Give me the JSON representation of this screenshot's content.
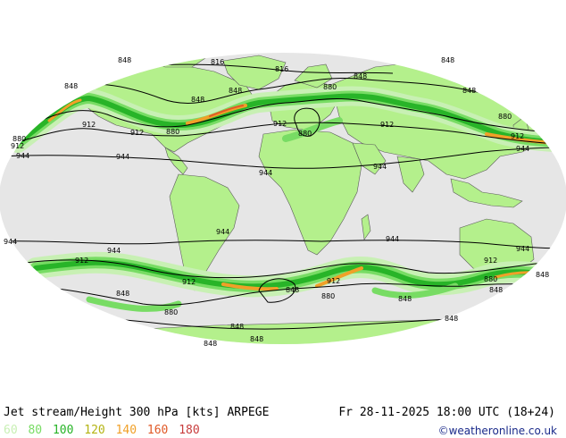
{
  "map": {
    "contour_labels": [
      {
        "text": "848",
        "id": "848-nw"
      },
      {
        "text": "816",
        "id": "816-arctic-a"
      },
      {
        "text": "816",
        "id": "816-arctic-b"
      },
      {
        "text": "848",
        "id": "848-ne"
      },
      {
        "text": "848",
        "id": "848-alaska"
      },
      {
        "text": "848",
        "id": "848-nam"
      },
      {
        "text": "848",
        "id": "848-atl"
      },
      {
        "text": "848",
        "id": "848-eur"
      },
      {
        "text": "848",
        "id": "848-asia"
      },
      {
        "text": "880",
        "id": "880-eur"
      },
      {
        "text": "880",
        "id": "880-med"
      },
      {
        "text": "880",
        "id": "880-nam"
      },
      {
        "text": "880",
        "id": "880-pac-w"
      },
      {
        "text": "880",
        "id": "880-pac-e"
      },
      {
        "text": "912",
        "id": "912-pac"
      },
      {
        "text": "912",
        "id": "912-nam"
      },
      {
        "text": "912",
        "id": "912-atl"
      },
      {
        "text": "912",
        "id": "912-asia"
      },
      {
        "text": "912",
        "id": "912-east"
      },
      {
        "text": "912",
        "id": "912-w"
      },
      {
        "text": "944",
        "id": "944-w"
      },
      {
        "text": "944",
        "id": "944-pac"
      },
      {
        "text": "944",
        "id": "944-afr"
      },
      {
        "text": "944",
        "id": "944-ind"
      },
      {
        "text": "944",
        "id": "944-e"
      },
      {
        "text": "944",
        "id": "944-sw"
      },
      {
        "text": "944",
        "id": "944-spac"
      },
      {
        "text": "944",
        "id": "944-sam"
      },
      {
        "text": "944",
        "id": "944-sio"
      },
      {
        "text": "944",
        "id": "944-aus"
      },
      {
        "text": "912",
        "id": "912-spac-w"
      },
      {
        "text": "912",
        "id": "912-spac"
      },
      {
        "text": "912",
        "id": "912-satl"
      },
      {
        "text": "912",
        "id": "912-aus"
      },
      {
        "text": "880",
        "id": "880-spac"
      },
      {
        "text": "880",
        "id": "880-satl"
      },
      {
        "text": "880",
        "id": "880-aus"
      },
      {
        "text": "848",
        "id": "848-spac"
      },
      {
        "text": "848",
        "id": "848-satl"
      },
      {
        "text": "848",
        "id": "848-sio"
      },
      {
        "text": "848",
        "id": "848-aus"
      },
      {
        "text": "848",
        "id": "848-ant-a"
      },
      {
        "text": "848",
        "id": "848-ant-b"
      },
      {
        "text": "848",
        "id": "848-ant-c"
      },
      {
        "text": "848",
        "id": "848-ant-d"
      },
      {
        "text": "848",
        "id": "848-ant-e"
      }
    ],
    "colors": {
      "ocean": "#e6e6e6",
      "land": "#b4f08c",
      "jet_60": "#c8f0b4",
      "jet_80": "#78dc64",
      "jet_100": "#28b428",
      "jet_120": "#b4b414",
      "jet_140": "#f0a028",
      "jet_160": "#e05a28",
      "outside": "#ffffff"
    }
  },
  "footer": {
    "title": "Jet stream/Height 300 hPa [kts] ARPEGE",
    "datetime": "Fr 28-11-2025 18:00 UTC (18+24)",
    "credit": "©weatheronline.co.uk",
    "legend": [
      {
        "value": "60",
        "color": "#c8f0b4"
      },
      {
        "value": "80",
        "color": "#78dc64"
      },
      {
        "value": "100",
        "color": "#28b428"
      },
      {
        "value": "120",
        "color": "#b4b414"
      },
      {
        "value": "140",
        "color": "#f0a028"
      },
      {
        "value": "160",
        "color": "#e05a28"
      },
      {
        "value": "180",
        "color": "#c83c3c"
      }
    ]
  }
}
